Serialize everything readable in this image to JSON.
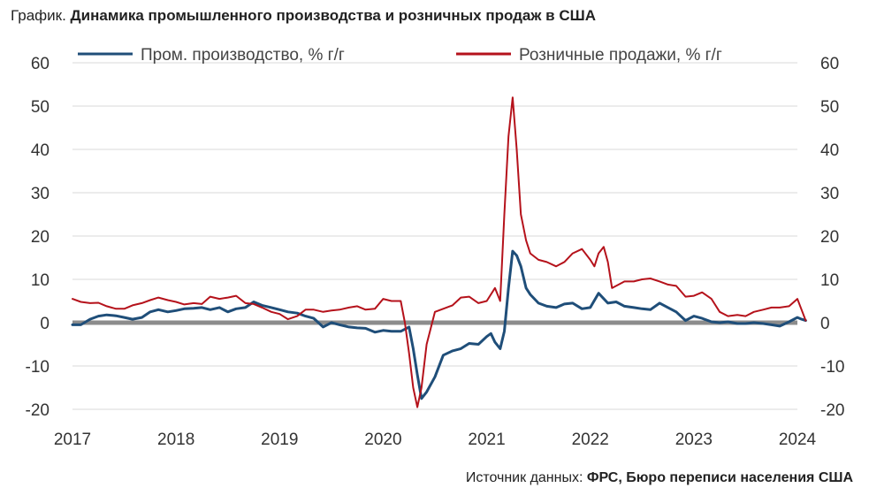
{
  "header": {
    "lead": "График.",
    "title": "Динамика промышленного производства и розничных продаж в США"
  },
  "footer": {
    "source_label": "Источник данных:",
    "source_value": "ФРС, Бюро переписи населения США"
  },
  "chart_data": {
    "type": "line",
    "title": "Динамика промышленного производства и розничных продаж в США",
    "ylim": [
      -20,
      60
    ],
    "yticks": [
      -20,
      -10,
      0,
      10,
      20,
      30,
      40,
      50,
      60
    ],
    "xlim": [
      2017.0,
      2024.0
    ],
    "xticks": [
      "2017",
      "2018",
      "2019",
      "2020",
      "2021",
      "2022",
      "2023",
      "2024"
    ],
    "grid": true,
    "legend": "top",
    "series": [
      {
        "name": "Пром. производство, % г/г",
        "color": "#1f4e79",
        "points": [
          [
            2017.0,
            -0.5
          ],
          [
            2017.08,
            -0.5
          ],
          [
            2017.17,
            0.8
          ],
          [
            2017.25,
            1.5
          ],
          [
            2017.33,
            1.8
          ],
          [
            2017.42,
            1.6
          ],
          [
            2017.5,
            1.2
          ],
          [
            2017.58,
            0.8
          ],
          [
            2017.67,
            1.2
          ],
          [
            2017.75,
            2.5
          ],
          [
            2017.83,
            3.0
          ],
          [
            2017.92,
            2.5
          ],
          [
            2018.0,
            2.8
          ],
          [
            2018.08,
            3.2
          ],
          [
            2018.17,
            3.3
          ],
          [
            2018.25,
            3.5
          ],
          [
            2018.33,
            3.0
          ],
          [
            2018.42,
            3.5
          ],
          [
            2018.5,
            2.5
          ],
          [
            2018.58,
            3.2
          ],
          [
            2018.67,
            3.5
          ],
          [
            2018.75,
            4.8
          ],
          [
            2018.83,
            4.0
          ],
          [
            2018.92,
            3.5
          ],
          [
            2019.0,
            3.0
          ],
          [
            2019.08,
            2.5
          ],
          [
            2019.17,
            2.2
          ],
          [
            2019.25,
            1.5
          ],
          [
            2019.33,
            1.0
          ],
          [
            2019.42,
            -1.0
          ],
          [
            2019.5,
            0.0
          ],
          [
            2019.58,
            -0.5
          ],
          [
            2019.67,
            -1.0
          ],
          [
            2019.75,
            -1.2
          ],
          [
            2019.83,
            -1.3
          ],
          [
            2019.92,
            -2.2
          ],
          [
            2020.0,
            -1.8
          ],
          [
            2020.08,
            -2.0
          ],
          [
            2020.17,
            -2.0
          ],
          [
            2020.25,
            -1.0
          ],
          [
            2020.29,
            -6.0
          ],
          [
            2020.33,
            -12.0
          ],
          [
            2020.37,
            -17.5
          ],
          [
            2020.42,
            -16.0
          ],
          [
            2020.5,
            -12.5
          ],
          [
            2020.58,
            -7.5
          ],
          [
            2020.67,
            -6.5
          ],
          [
            2020.75,
            -6.0
          ],
          [
            2020.83,
            -4.8
          ],
          [
            2020.92,
            -5.0
          ],
          [
            2021.0,
            -3.2
          ],
          [
            2021.04,
            -2.5
          ],
          [
            2021.08,
            -4.5
          ],
          [
            2021.13,
            -6.0
          ],
          [
            2021.17,
            -2.0
          ],
          [
            2021.21,
            8.0
          ],
          [
            2021.25,
            16.5
          ],
          [
            2021.29,
            15.5
          ],
          [
            2021.33,
            13.0
          ],
          [
            2021.38,
            8.0
          ],
          [
            2021.42,
            6.5
          ],
          [
            2021.5,
            4.5
          ],
          [
            2021.58,
            3.8
          ],
          [
            2021.67,
            3.5
          ],
          [
            2021.75,
            4.3
          ],
          [
            2021.83,
            4.5
          ],
          [
            2021.92,
            3.2
          ],
          [
            2022.0,
            3.5
          ],
          [
            2022.08,
            6.8
          ],
          [
            2022.17,
            4.5
          ],
          [
            2022.25,
            4.8
          ],
          [
            2022.33,
            3.8
          ],
          [
            2022.42,
            3.5
          ],
          [
            2022.5,
            3.2
          ],
          [
            2022.58,
            3.0
          ],
          [
            2022.67,
            4.5
          ],
          [
            2022.75,
            3.5
          ],
          [
            2022.83,
            2.5
          ],
          [
            2022.92,
            0.5
          ],
          [
            2023.0,
            1.5
          ],
          [
            2023.08,
            1.0
          ],
          [
            2023.17,
            0.2
          ],
          [
            2023.25,
            0.0
          ],
          [
            2023.33,
            0.2
          ],
          [
            2023.42,
            -0.2
          ],
          [
            2023.5,
            -0.2
          ],
          [
            2023.58,
            0.0
          ],
          [
            2023.67,
            -0.2
          ],
          [
            2023.75,
            -0.5
          ],
          [
            2023.83,
            -0.8
          ],
          [
            2023.92,
            0.2
          ],
          [
            2024.0,
            1.2
          ],
          [
            2024.04,
            0.8
          ],
          [
            2024.08,
            0.5
          ]
        ]
      },
      {
        "name": "Розничные продажи, % г/г",
        "color": "#b5121b",
        "points": [
          [
            2017.0,
            5.5
          ],
          [
            2017.08,
            4.8
          ],
          [
            2017.17,
            4.5
          ],
          [
            2017.25,
            4.6
          ],
          [
            2017.33,
            3.8
          ],
          [
            2017.42,
            3.2
          ],
          [
            2017.5,
            3.2
          ],
          [
            2017.58,
            4.0
          ],
          [
            2017.67,
            4.5
          ],
          [
            2017.75,
            5.2
          ],
          [
            2017.83,
            5.8
          ],
          [
            2017.92,
            5.2
          ],
          [
            2018.0,
            4.8
          ],
          [
            2018.08,
            4.2
          ],
          [
            2018.17,
            4.5
          ],
          [
            2018.25,
            4.3
          ],
          [
            2018.33,
            6.0
          ],
          [
            2018.42,
            5.5
          ],
          [
            2018.5,
            5.8
          ],
          [
            2018.58,
            6.2
          ],
          [
            2018.67,
            4.5
          ],
          [
            2018.75,
            4.3
          ],
          [
            2018.83,
            3.5
          ],
          [
            2018.92,
            2.5
          ],
          [
            2019.0,
            2.0
          ],
          [
            2019.08,
            0.8
          ],
          [
            2019.17,
            1.5
          ],
          [
            2019.25,
            3.0
          ],
          [
            2019.33,
            3.0
          ],
          [
            2019.42,
            2.5
          ],
          [
            2019.5,
            2.8
          ],
          [
            2019.58,
            3.0
          ],
          [
            2019.67,
            3.5
          ],
          [
            2019.75,
            3.8
          ],
          [
            2019.83,
            3.0
          ],
          [
            2019.92,
            3.2
          ],
          [
            2020.0,
            5.5
          ],
          [
            2020.08,
            5.0
          ],
          [
            2020.17,
            5.0
          ],
          [
            2020.21,
            0.0
          ],
          [
            2020.25,
            -7.0
          ],
          [
            2020.29,
            -15.0
          ],
          [
            2020.33,
            -19.5
          ],
          [
            2020.37,
            -15.0
          ],
          [
            2020.42,
            -5.0
          ],
          [
            2020.5,
            2.5
          ],
          [
            2020.58,
            3.2
          ],
          [
            2020.67,
            4.0
          ],
          [
            2020.75,
            5.8
          ],
          [
            2020.83,
            6.0
          ],
          [
            2020.92,
            4.5
          ],
          [
            2021.0,
            5.0
          ],
          [
            2021.08,
            8.0
          ],
          [
            2021.13,
            5.0
          ],
          [
            2021.17,
            25.0
          ],
          [
            2021.21,
            43.0
          ],
          [
            2021.25,
            52.0
          ],
          [
            2021.29,
            40.0
          ],
          [
            2021.33,
            25.0
          ],
          [
            2021.38,
            19.0
          ],
          [
            2021.42,
            16.0
          ],
          [
            2021.5,
            14.5
          ],
          [
            2021.58,
            14.0
          ],
          [
            2021.67,
            13.0
          ],
          [
            2021.75,
            14.0
          ],
          [
            2021.83,
            16.0
          ],
          [
            2021.92,
            17.0
          ],
          [
            2022.0,
            14.5
          ],
          [
            2022.04,
            13.0
          ],
          [
            2022.08,
            16.0
          ],
          [
            2022.13,
            17.5
          ],
          [
            2022.17,
            14.0
          ],
          [
            2022.21,
            8.0
          ],
          [
            2022.25,
            8.5
          ],
          [
            2022.33,
            9.5
          ],
          [
            2022.42,
            9.5
          ],
          [
            2022.5,
            10.0
          ],
          [
            2022.58,
            10.2
          ],
          [
            2022.67,
            9.5
          ],
          [
            2022.75,
            8.8
          ],
          [
            2022.83,
            8.5
          ],
          [
            2022.92,
            6.0
          ],
          [
            2023.0,
            6.2
          ],
          [
            2023.08,
            7.0
          ],
          [
            2023.17,
            5.5
          ],
          [
            2023.25,
            2.5
          ],
          [
            2023.33,
            1.5
          ],
          [
            2023.42,
            1.8
          ],
          [
            2023.5,
            1.5
          ],
          [
            2023.58,
            2.5
          ],
          [
            2023.67,
            3.0
          ],
          [
            2023.75,
            3.5
          ],
          [
            2023.83,
            3.5
          ],
          [
            2023.92,
            3.8
          ],
          [
            2024.0,
            5.5
          ],
          [
            2024.04,
            3.0
          ],
          [
            2024.08,
            0.5
          ]
        ]
      }
    ]
  }
}
